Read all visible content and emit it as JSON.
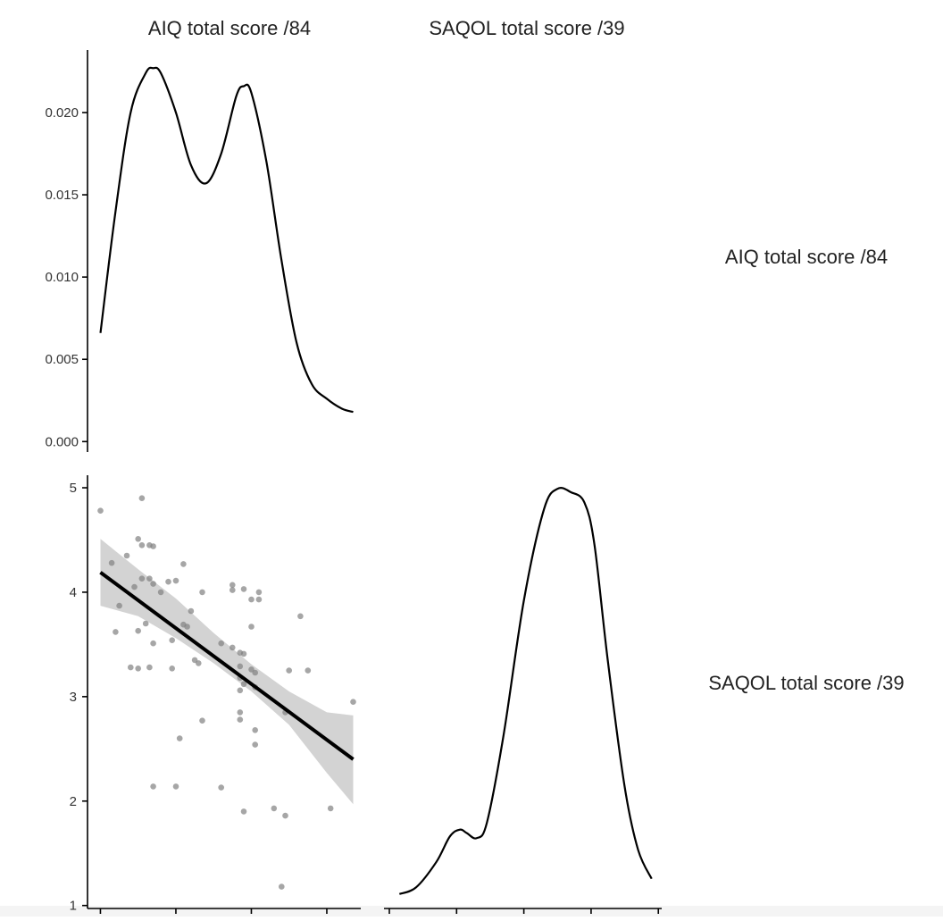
{
  "chart_data": {
    "type": "scatter",
    "layout": "pairs-plot",
    "variables": [
      "AIQ total score /84",
      "SAQOL total score /39"
    ],
    "col_labels": [
      "AIQ total score /84",
      "SAQOL total score /39"
    ],
    "row_labels": [
      "AIQ total score /84",
      "SAQOL total score /39"
    ],
    "panels": {
      "aiq_density": {
        "type": "line",
        "variable": "AIQ total score /84",
        "x": [
          0,
          4,
          8,
          12,
          14,
          16,
          20,
          24,
          28,
          32,
          36,
          38,
          40,
          44,
          48,
          52,
          56,
          60,
          64,
          67
        ],
        "y": [
          0.0066,
          0.014,
          0.02,
          0.0224,
          0.0227,
          0.0224,
          0.02,
          0.0168,
          0.0157,
          0.0175,
          0.021,
          0.0216,
          0.0212,
          0.017,
          0.011,
          0.006,
          0.0035,
          0.0026,
          0.002,
          0.0018
        ],
        "xlim": [
          -2,
          69
        ],
        "ylim": [
          -0.0002,
          0.0238
        ],
        "y_ticks": [
          0.0,
          0.005,
          0.01,
          0.015,
          0.02
        ],
        "y_tick_labels": [
          "0.000",
          "0.005",
          "0.010",
          "0.015",
          "0.020"
        ]
      },
      "scatter": {
        "type": "scatter",
        "x_variable": "AIQ total score /84",
        "y_variable": "SAQOL total score /39",
        "points": [
          [
            0,
            4.78
          ],
          [
            11,
            4.9
          ],
          [
            10,
            4.51
          ],
          [
            11,
            4.45
          ],
          [
            13,
            4.45
          ],
          [
            14,
            4.44
          ],
          [
            7,
            4.35
          ],
          [
            3,
            4.28
          ],
          [
            22,
            4.27
          ],
          [
            9,
            4.05
          ],
          [
            11,
            4.13
          ],
          [
            13,
            4.13
          ],
          [
            14,
            4.08
          ],
          [
            16,
            4.0
          ],
          [
            18,
            4.1
          ],
          [
            20,
            4.11
          ],
          [
            27,
            4.0
          ],
          [
            35,
            4.07
          ],
          [
            35,
            4.02
          ],
          [
            38,
            4.03
          ],
          [
            40,
            3.93
          ],
          [
            42,
            4.0
          ],
          [
            42,
            3.93
          ],
          [
            5,
            3.87
          ],
          [
            12,
            3.7
          ],
          [
            22,
            3.69
          ],
          [
            23,
            3.67
          ],
          [
            24,
            3.82
          ],
          [
            40,
            3.67
          ],
          [
            53,
            3.77
          ],
          [
            4,
            3.62
          ],
          [
            10,
            3.63
          ],
          [
            19,
            3.54
          ],
          [
            14,
            3.51
          ],
          [
            32,
            3.51
          ],
          [
            35,
            3.47
          ],
          [
            37,
            3.42
          ],
          [
            38,
            3.41
          ],
          [
            25,
            3.35
          ],
          [
            26,
            3.32
          ],
          [
            8,
            3.28
          ],
          [
            10,
            3.27
          ],
          [
            13,
            3.28
          ],
          [
            19,
            3.27
          ],
          [
            37,
            3.29
          ],
          [
            40,
            3.26
          ],
          [
            41,
            3.23
          ],
          [
            50,
            3.25
          ],
          [
            55,
            3.25
          ],
          [
            37,
            3.18
          ],
          [
            38,
            3.12
          ],
          [
            37,
            3.06
          ],
          [
            41,
            3.09
          ],
          [
            67,
            2.95
          ],
          [
            37,
            2.85
          ],
          [
            49,
            2.85
          ],
          [
            37,
            2.78
          ],
          [
            27,
            2.77
          ],
          [
            41,
            2.68
          ],
          [
            41,
            2.54
          ],
          [
            21,
            2.6
          ],
          [
            14,
            2.14
          ],
          [
            20,
            2.14
          ],
          [
            32,
            2.13
          ],
          [
            38,
            1.9
          ],
          [
            46,
            1.93
          ],
          [
            61,
            1.93
          ],
          [
            49,
            1.86
          ],
          [
            48,
            1.18
          ]
        ],
        "fit": {
          "x": [
            0,
            67
          ],
          "y": [
            4.19,
            2.4
          ]
        },
        "ribbon": {
          "x": [
            0,
            10,
            20,
            30,
            40,
            50,
            60,
            67
          ],
          "lower": [
            3.87,
            3.77,
            3.56,
            3.32,
            3.05,
            2.73,
            2.27,
            1.97
          ],
          "upper": [
            4.51,
            4.22,
            3.94,
            3.61,
            3.31,
            3.05,
            2.85,
            2.82
          ]
        },
        "xlim": [
          -2,
          69
        ],
        "ylim": [
          0.98,
          5.12
        ],
        "x_ticks": [
          0,
          20,
          40,
          60
        ],
        "y_ticks": [
          1,
          2,
          3,
          4,
          5
        ]
      },
      "saqol_density": {
        "type": "line",
        "variable": "SAQOL total score /39",
        "x": [
          1.15,
          1.4,
          1.7,
          1.9,
          2.05,
          2.15,
          2.3,
          2.45,
          2.7,
          3.0,
          3.3,
          3.5,
          3.7,
          3.9,
          4.05,
          4.25,
          4.5,
          4.7,
          4.9
        ],
        "y": [
          0.05,
          0.09,
          0.24,
          0.39,
          0.43,
          0.41,
          0.38,
          0.47,
          0.99,
          1.78,
          2.32,
          2.44,
          2.42,
          2.36,
          2.11,
          1.42,
          0.68,
          0.31,
          0.14
        ],
        "xlim": [
          1.0,
          5.05
        ],
        "ylim": [
          -0.03,
          2.52
        ],
        "x_ticks": [
          1,
          2,
          3,
          4,
          5
        ]
      }
    },
    "grid": false
  }
}
